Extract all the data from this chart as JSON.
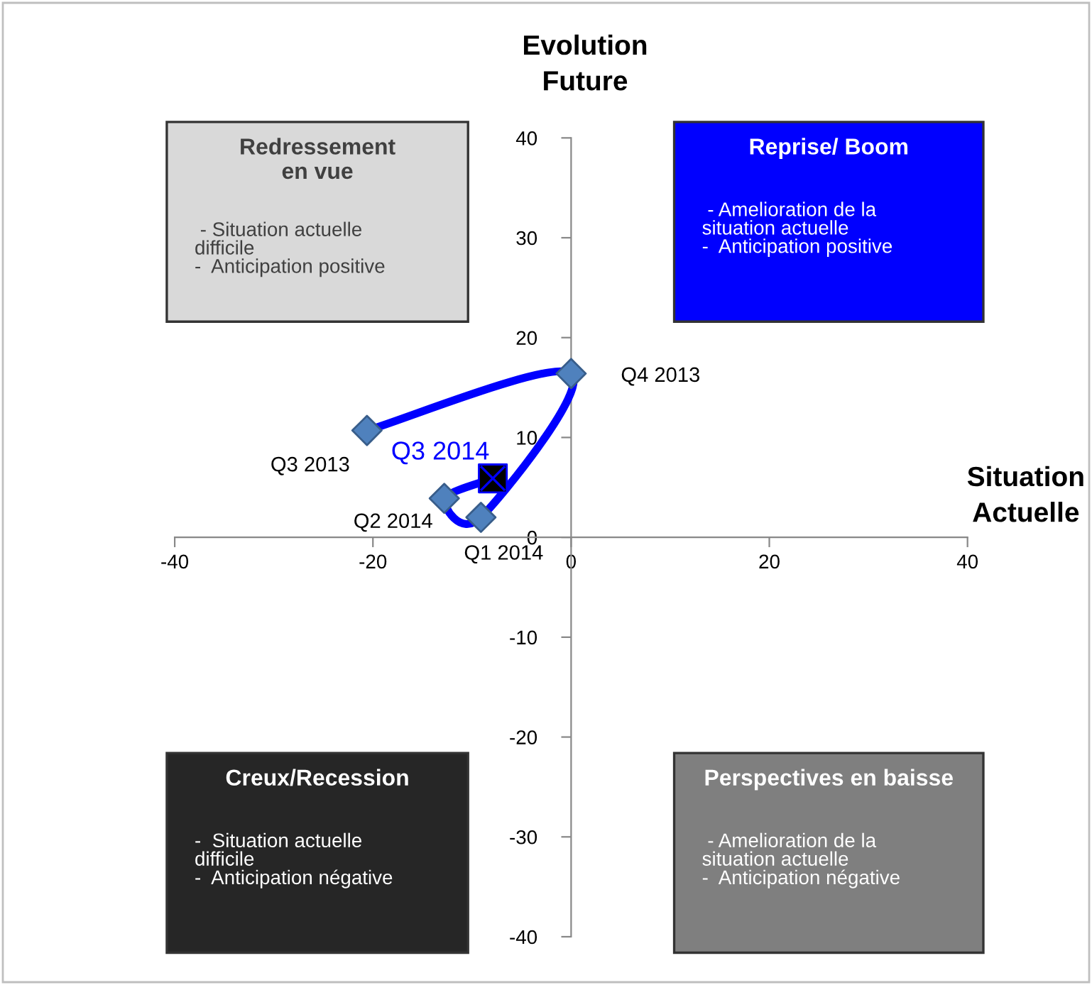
{
  "chart_data": {
    "type": "line",
    "xlabel": "Situation\nActuelle",
    "ylabel": "Evolution\nFuture",
    "xlim": [
      -40,
      40
    ],
    "xticks": [
      -40,
      -20,
      0,
      20,
      40
    ],
    "ylim": [
      -40,
      40
    ],
    "yticks": [
      -40,
      -30,
      -20,
      -10,
      0,
      10,
      20,
      30,
      40
    ],
    "grid": false,
    "legend": false,
    "series": [
      {
        "color": "#0000ff",
        "marker": "none",
        "x": [
          -20.6,
          0,
          -9.1,
          -12.8,
          -7.9
        ],
        "values": [
          10.7,
          16.4,
          2.0,
          3.9,
          5.9
        ]
      },
      {
        "type": "scatter",
        "color": "#4f81bd",
        "marker": "diamond",
        "x": [
          -20.6,
          0,
          -9.1,
          -12.8
        ],
        "values": [
          10.7,
          16.4,
          2.0,
          3.9
        ]
      },
      {
        "type": "scatter",
        "color": "#000000",
        "marker": "square",
        "x": [
          -7.9
        ],
        "values": [
          5.9
        ]
      }
    ],
    "annotations": [
      "Redressement\nen vue",
      " - Situation actuelle\ndifficile\n-  Anticipation positive",
      "Reprise/ Boom",
      " - Amelioration de la\nsituation actuelle\n-  Anticipation positive",
      "Creux/Recession",
      "-  Situation actuelle\ndifficile\n-  Anticipation négative",
      "Perspectives en baisse",
      " - Amelioration de la\nsituation actuelle\n-  Anticipation négative",
      {
        "text": "Q3 2013",
        "x": -20.6,
        "y": 10.7
      },
      {
        "text": "Q4 2013",
        "x": 0,
        "y": 16.4
      },
      {
        "text": "Q1 2014",
        "x": -9.1,
        "y": 2.0
      },
      {
        "text": "Q2 2014",
        "x": -12.8,
        "y": 3.9
      },
      {
        "text": "Q3 2014",
        "x": -7.9,
        "y": 5.9
      }
    ]
  }
}
